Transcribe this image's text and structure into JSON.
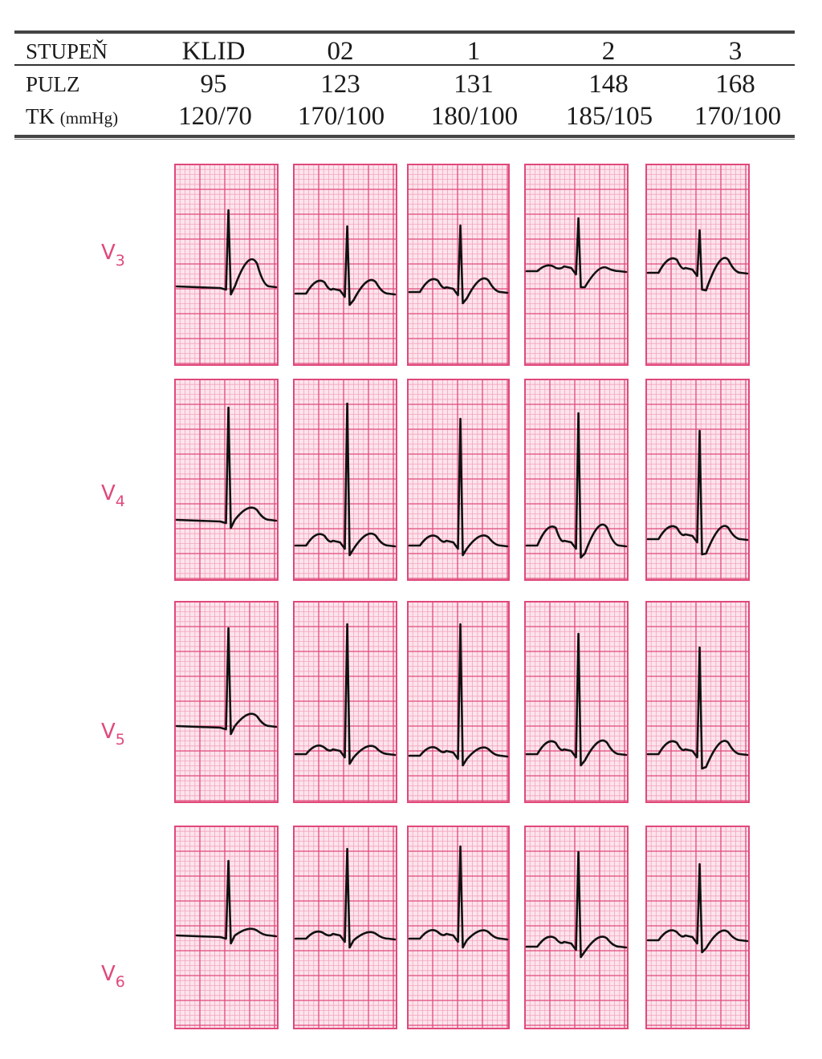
{
  "table": {
    "columns": [
      "KLID",
      "02",
      "1",
      "2",
      "3"
    ],
    "rows": [
      {
        "label": "STUPEŇ",
        "unit": "",
        "values": [
          "KLID",
          "02",
          "1",
          "2",
          "3"
        ]
      },
      {
        "label": "PULZ",
        "unit": "",
        "values": [
          "95",
          "123",
          "131",
          "148",
          "168"
        ]
      },
      {
        "label": "TK",
        "unit": "(mmHg)",
        "values": [
          "120/70",
          "170/100",
          "180/100",
          "185/105",
          "170/100"
        ]
      }
    ]
  },
  "leads": [
    {
      "name": "V",
      "sub": "3"
    },
    {
      "name": "V",
      "sub": "4"
    },
    {
      "name": "V",
      "sub": "5"
    },
    {
      "name": "V",
      "sub": "6"
    }
  ],
  "colors": {
    "grid_fine": "#f2a5bc",
    "grid_major": "#e0497a",
    "paper": "#fde4ec",
    "trace": "#111111",
    "lead_label": "#e0497a"
  }
}
